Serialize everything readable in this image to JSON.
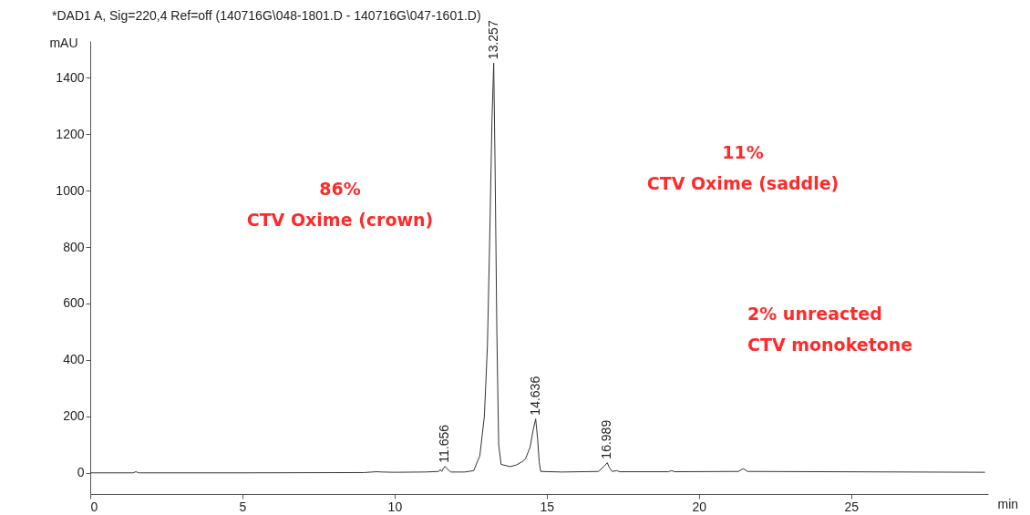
{
  "chart_data": {
    "type": "line",
    "title": "*DAD1 A, Sig=220,4 Ref=off (140716G\\048-1801.D - 140716G\\047-1601.D)",
    "xlabel": "min",
    "ylabel": "mAU",
    "xlim": [
      0,
      29.5
    ],
    "xticks": [
      0,
      5,
      10,
      15,
      20,
      25
    ],
    "ylim": [
      -75,
      1530
    ],
    "yticks": [
      0,
      200,
      400,
      600,
      800,
      1000,
      1200,
      1400
    ],
    "series": [
      {
        "color": "#333333",
        "x": [
          0,
          1.4,
          1.5,
          1.6,
          5,
          9,
          9.4,
          9.6,
          10,
          11,
          11.45,
          11.5,
          11.55,
          11.6,
          11.656,
          11.75,
          11.85,
          12.3,
          12.6,
          12.8,
          12.95,
          13.05,
          13.12,
          13.2,
          13.257,
          13.3,
          13.36,
          13.42,
          13.5,
          13.8,
          14.0,
          14.2,
          14.3,
          14.45,
          14.55,
          14.636,
          14.7,
          14.75,
          14.8,
          15.5,
          16.7,
          16.8,
          16.9,
          16.989,
          17.05,
          17.15,
          17.3,
          17.4,
          19,
          19.1,
          19.2,
          21.3,
          21.45,
          21.6,
          29.4
        ],
        "values": [
          0,
          0,
          4,
          0,
          0,
          1,
          4,
          3,
          2,
          3,
          5,
          12,
          5,
          15,
          23,
          12,
          3,
          3,
          8,
          60,
          200,
          450,
          800,
          1250,
          1452,
          1100,
          500,
          100,
          30,
          22,
          28,
          40,
          50,
          90,
          150,
          191,
          120,
          40,
          5,
          3,
          5,
          15,
          25,
          36,
          20,
          5,
          8,
          4,
          4,
          8,
          4,
          5,
          15,
          5,
          2
        ]
      }
    ],
    "annotations": [
      {
        "text": "11.656",
        "x": 11.656,
        "y": 23
      },
      {
        "text": "13.257",
        "x": 13.257,
        "y": 1452
      },
      {
        "text": "14.636",
        "x": 14.636,
        "y": 191
      },
      {
        "text": "16.989",
        "x": 16.989,
        "y": 36
      },
      "86%\nCTV Oxime (crown)",
      "11%\nCTV Oxime (saddle)",
      "2% unreacted\nCTV monoketone"
    ]
  }
}
